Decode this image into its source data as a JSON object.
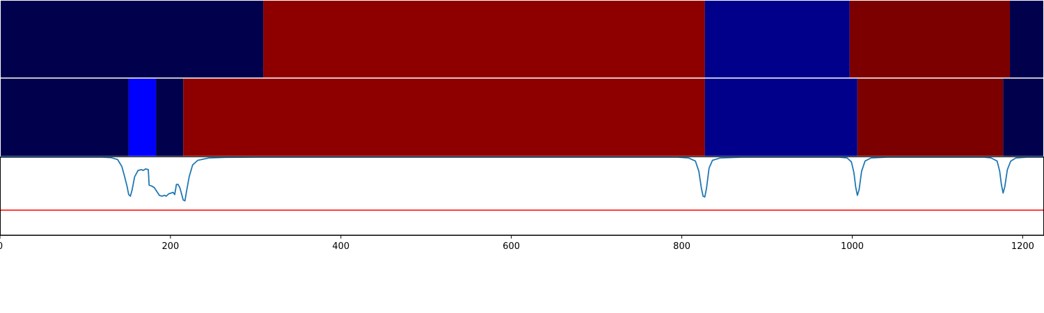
{
  "chart_data": {
    "type": "heatmap",
    "xlim": [
      0,
      1225
    ],
    "x_ticks": [
      0,
      200,
      400,
      600,
      800,
      1000,
      1200
    ],
    "x_tick_labels": [
      "0",
      "200",
      "400",
      "600",
      "800",
      "1000",
      "1200"
    ],
    "segment_rows": [
      {
        "row": 1,
        "segments": [
          {
            "start": 0,
            "end": 309,
            "color": "#00004c"
          },
          {
            "start": 309,
            "end": 827,
            "color": "#8e0000"
          },
          {
            "start": 827,
            "end": 997,
            "color": "#00008a"
          },
          {
            "start": 997,
            "end": 1185,
            "color": "#7c0000"
          },
          {
            "start": 1185,
            "end": 1225,
            "color": "#00004c"
          }
        ]
      },
      {
        "row": 2,
        "segments": [
          {
            "start": 0,
            "end": 151,
            "color": "#00004c"
          },
          {
            "start": 151,
            "end": 183,
            "color": "#0000ff"
          },
          {
            "start": 183,
            "end": 215,
            "color": "#00004c"
          },
          {
            "start": 215,
            "end": 827,
            "color": "#8e0000"
          },
          {
            "start": 827,
            "end": 1006,
            "color": "#00008a"
          },
          {
            "start": 1006,
            "end": 1177,
            "color": "#7c0000"
          },
          {
            "start": 1177,
            "end": 1225,
            "color": "#00004c"
          }
        ]
      }
    ],
    "line_panel": {
      "ylim": [
        0,
        1
      ],
      "threshold": 0.32,
      "threshold_color": "#ff0000",
      "line_color": "#1f77b4",
      "points": [
        [
          0,
          1.0
        ],
        [
          120,
          1.0
        ],
        [
          130,
          0.995
        ],
        [
          138,
          0.97
        ],
        [
          143,
          0.88
        ],
        [
          146,
          0.76
        ],
        [
          149,
          0.63
        ],
        [
          151,
          0.52
        ],
        [
          153,
          0.5
        ],
        [
          155,
          0.58
        ],
        [
          158,
          0.75
        ],
        [
          162,
          0.83
        ],
        [
          166,
          0.84
        ],
        [
          168,
          0.83
        ],
        [
          171,
          0.85
        ],
        [
          174,
          0.84
        ],
        [
          175,
          0.64
        ],
        [
          178,
          0.63
        ],
        [
          181,
          0.61
        ],
        [
          184,
          0.56
        ],
        [
          187,
          0.51
        ],
        [
          190,
          0.5
        ],
        [
          193,
          0.51
        ],
        [
          195,
          0.5
        ],
        [
          198,
          0.53
        ],
        [
          201,
          0.54
        ],
        [
          203,
          0.55
        ],
        [
          205,
          0.52
        ],
        [
          207,
          0.65
        ],
        [
          209,
          0.65
        ],
        [
          211,
          0.61
        ],
        [
          213,
          0.53
        ],
        [
          215,
          0.45
        ],
        [
          217,
          0.44
        ],
        [
          219,
          0.57
        ],
        [
          222,
          0.75
        ],
        [
          226,
          0.9
        ],
        [
          232,
          0.96
        ],
        [
          245,
          0.99
        ],
        [
          265,
          0.998
        ],
        [
          300,
          1.0
        ],
        [
          795,
          1.0
        ],
        [
          808,
          0.99
        ],
        [
          816,
          0.95
        ],
        [
          820,
          0.82
        ],
        [
          823,
          0.6
        ],
        [
          825,
          0.5
        ],
        [
          827,
          0.49
        ],
        [
          829,
          0.6
        ],
        [
          832,
          0.86
        ],
        [
          836,
          0.96
        ],
        [
          845,
          0.99
        ],
        [
          870,
          1.0
        ],
        [
          985,
          1.0
        ],
        [
          994,
          0.99
        ],
        [
          999,
          0.94
        ],
        [
          1002,
          0.8
        ],
        [
          1004,
          0.62
        ],
        [
          1006,
          0.51
        ],
        [
          1008,
          0.58
        ],
        [
          1011,
          0.82
        ],
        [
          1015,
          0.95
        ],
        [
          1022,
          0.99
        ],
        [
          1040,
          1.0
        ],
        [
          1155,
          1.0
        ],
        [
          1163,
          0.99
        ],
        [
          1170,
          0.95
        ],
        [
          1173,
          0.82
        ],
        [
          1175,
          0.65
        ],
        [
          1177,
          0.54
        ],
        [
          1179,
          0.62
        ],
        [
          1182,
          0.84
        ],
        [
          1186,
          0.95
        ],
        [
          1192,
          0.99
        ],
        [
          1205,
          1.0
        ],
        [
          1225,
          1.0
        ]
      ]
    }
  }
}
